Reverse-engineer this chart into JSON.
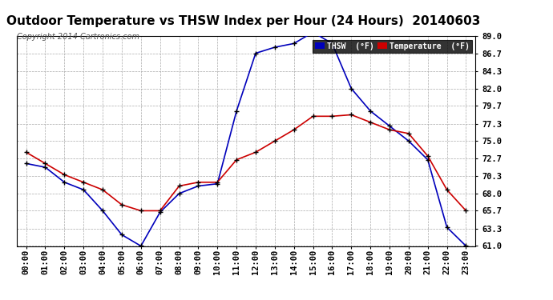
{
  "title": "Outdoor Temperature vs THSW Index per Hour (24 Hours)  20140603",
  "copyright": "Copyright 2014 Cartronics.com",
  "hours": [
    "00:00",
    "01:00",
    "02:00",
    "03:00",
    "04:00",
    "05:00",
    "06:00",
    "07:00",
    "08:00",
    "09:00",
    "10:00",
    "11:00",
    "12:00",
    "13:00",
    "14:00",
    "15:00",
    "16:00",
    "17:00",
    "18:00",
    "19:00",
    "20:00",
    "21:00",
    "22:00",
    "23:00"
  ],
  "thsw": [
    72.0,
    71.5,
    69.5,
    68.5,
    65.7,
    62.5,
    61.0,
    65.5,
    68.0,
    69.0,
    69.3,
    79.0,
    86.7,
    87.5,
    88.0,
    89.5,
    88.0,
    82.0,
    79.0,
    77.0,
    75.0,
    72.5,
    63.5,
    61.0
  ],
  "temp": [
    73.5,
    72.0,
    70.5,
    69.5,
    68.5,
    66.5,
    65.7,
    65.7,
    69.0,
    69.5,
    69.5,
    72.5,
    73.5,
    75.0,
    76.5,
    78.3,
    78.3,
    78.5,
    77.5,
    76.5,
    76.0,
    73.0,
    68.5,
    65.7
  ],
  "ylim_min": 61.0,
  "ylim_max": 89.0,
  "yticks": [
    61.0,
    63.3,
    65.7,
    68.0,
    70.3,
    72.7,
    75.0,
    77.3,
    79.7,
    82.0,
    84.3,
    86.7,
    89.0
  ],
  "thsw_color": "#0000bb",
  "temp_color": "#cc0000",
  "marker_color": "#000000",
  "bg_color": "#ffffff",
  "grid_color": "#aaaaaa",
  "title_fontsize": 11,
  "copyright_fontsize": 7,
  "tick_fontsize": 7.5,
  "legend_thsw_label": "THSW  (°F)",
  "legend_temp_label": "Temperature  (°F)"
}
